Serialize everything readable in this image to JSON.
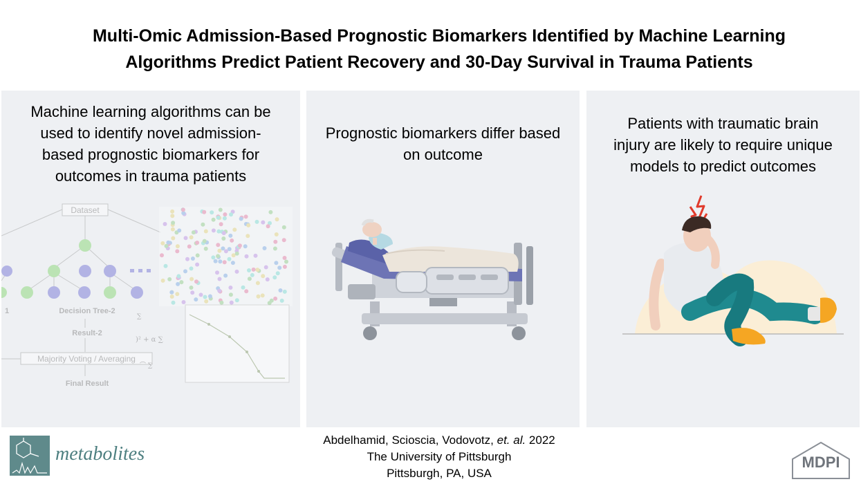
{
  "title": {
    "line1": "Multi-Omic Admission-Based Prognostic Biomarkers Identified by Machine Learning",
    "line2": "Algorithms Predict Patient Recovery and 30-Day Survival in Trauma Patients"
  },
  "panels": [
    {
      "lines": [
        "Machine learning algorithms can be",
        "used to identify novel admission-",
        "based prognostic biomarkers for",
        "outcomes in trauma patients"
      ],
      "diagram": {
        "dataset": "Dataset",
        "tree": "Decision Tree-2",
        "tree_left": "1",
        "result": "Result-2",
        "voting": "Majority Voting / Averaging",
        "final": "Final Result"
      }
    },
    {
      "lines": [
        "Prognostic biomarkers differ based",
        "on outcome"
      ]
    },
    {
      "lines": [
        "Patients with traumatic brain",
        "injury are likely to require unique",
        "models to predict outcomes"
      ]
    }
  ],
  "footer": {
    "authors_prefix": "Abdelhamid, Scioscia, Vodovotz, ",
    "authors_etal": "et. al.",
    "year": " 2022",
    "institution": "The University of Pittsburgh",
    "location": "Pittsburgh, PA, USA"
  },
  "journal": {
    "name": "metabolites"
  },
  "publisher": {
    "name": "MDPI"
  },
  "colors": {
    "panel_bg": "#eef0f3",
    "journal_teal": "#5f8a8b",
    "accent_yellow": "#f5a623",
    "teal_pants": "#1f8a8f"
  }
}
